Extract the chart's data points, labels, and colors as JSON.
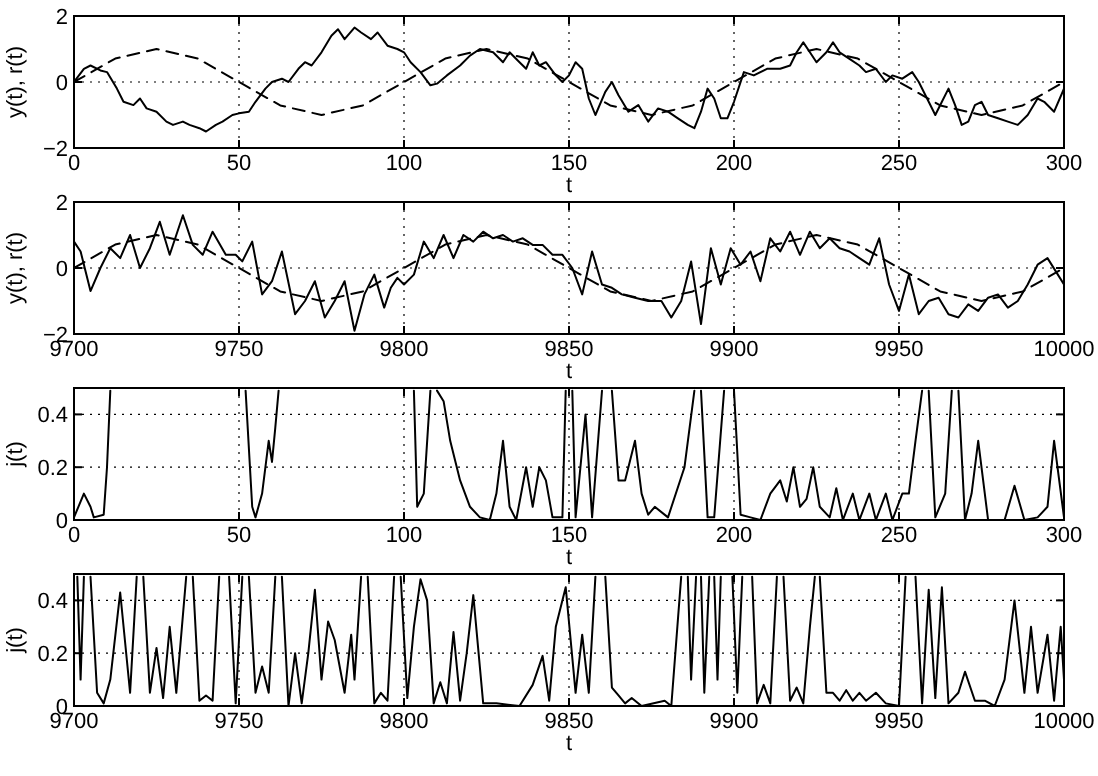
{
  "chart_data": [
    {
      "type": "line",
      "xlabel": "t",
      "ylabel": "y(t), r(t)",
      "xlim": [
        0,
        300
      ],
      "xticks": [
        0,
        50,
        100,
        150,
        200,
        250,
        300
      ],
      "ylim": [
        -2,
        2
      ],
      "yticks": [
        -2,
        0,
        2
      ],
      "grid": true,
      "series": [
        {
          "color": "#000000",
          "line_style": "solid",
          "x": [
            0,
            3,
            5,
            8,
            10,
            13,
            15,
            18,
            20,
            22,
            25,
            28,
            30,
            33,
            35,
            38,
            40,
            43,
            45,
            48,
            50,
            53,
            55,
            58,
            60,
            63,
            65,
            68,
            70,
            72,
            75,
            78,
            80,
            82,
            85,
            87,
            90,
            92,
            95,
            98,
            100,
            102,
            105,
            108,
            110,
            113,
            117,
            120,
            123,
            127,
            130,
            132,
            135,
            137,
            139,
            141,
            143,
            146,
            148,
            150,
            152,
            154,
            156,
            158,
            161,
            163,
            165,
            168,
            171,
            174,
            177,
            180,
            183,
            186,
            188,
            190,
            192,
            194,
            196,
            198,
            200,
            203,
            206,
            210,
            214,
            217,
            219,
            221,
            223,
            225,
            228,
            230,
            232,
            235,
            238,
            240,
            243,
            246,
            248,
            251,
            254,
            256,
            259,
            261,
            263,
            265,
            267,
            269,
            271,
            273,
            275,
            277,
            280,
            283,
            286,
            289,
            292,
            294,
            297,
            300
          ],
          "values": [
            0.0,
            0.4,
            0.5,
            0.35,
            0.3,
            -0.2,
            -0.6,
            -0.7,
            -0.5,
            -0.8,
            -0.9,
            -1.2,
            -1.3,
            -1.2,
            -1.3,
            -1.4,
            -1.5,
            -1.3,
            -1.2,
            -1.0,
            -0.95,
            -0.9,
            -0.6,
            -0.2,
            0.0,
            0.1,
            0.0,
            0.4,
            0.6,
            0.5,
            0.9,
            1.4,
            1.6,
            1.3,
            1.65,
            1.5,
            1.3,
            1.5,
            1.1,
            1.0,
            0.9,
            0.6,
            0.3,
            -0.1,
            -0.05,
            0.2,
            0.5,
            0.8,
            1.0,
            0.9,
            0.6,
            0.9,
            0.6,
            0.4,
            0.9,
            0.5,
            0.6,
            0.2,
            0.0,
            0.2,
            0.6,
            0.4,
            -0.5,
            -1.0,
            -0.3,
            0.0,
            -0.4,
            -0.9,
            -0.7,
            -1.2,
            -0.8,
            -0.9,
            -1.1,
            -1.3,
            -1.4,
            -0.9,
            -0.2,
            -0.5,
            -1.1,
            -1.1,
            -0.6,
            0.3,
            0.2,
            0.4,
            0.4,
            0.5,
            0.9,
            1.2,
            0.9,
            0.6,
            0.9,
            1.2,
            0.9,
            0.7,
            0.5,
            0.3,
            0.4,
            0.0,
            0.2,
            0.1,
            0.3,
            0.0,
            -0.6,
            -1.0,
            -0.6,
            -0.2,
            -0.7,
            -1.3,
            -1.2,
            -0.7,
            -0.6,
            -1.0,
            -1.1,
            -1.2,
            -1.3,
            -1.0,
            -0.5,
            -0.6,
            -0.9,
            -0.2
          ]
        },
        {
          "color": "#000000",
          "line_style": "dashed",
          "x": [
            0,
            12.5,
            25,
            37.5,
            50,
            62.5,
            75,
            87.5,
            100,
            112.5,
            125,
            137.5,
            150,
            162.5,
            175,
            187.5,
            200,
            212.5,
            225,
            237.5,
            250,
            262.5,
            275,
            287.5,
            300
          ],
          "values": [
            0,
            0.71,
            1,
            0.71,
            0,
            -0.71,
            -1,
            -0.71,
            0,
            0.71,
            1,
            0.71,
            0,
            -0.71,
            -1,
            -0.71,
            0,
            0.71,
            1,
            0.71,
            0,
            -0.71,
            -1,
            -0.71,
            0
          ]
        }
      ]
    },
    {
      "type": "line",
      "xlabel": "t",
      "ylabel": "y(t), r(t)",
      "xlim": [
        9700,
        10000
      ],
      "xticks": [
        9700,
        9750,
        9800,
        9850,
        9900,
        9950,
        10000
      ],
      "ylim": [
        -2,
        2
      ],
      "yticks": [
        -2,
        0,
        2
      ],
      "grid": true,
      "series": [
        {
          "color": "#000000",
          "line_style": "solid",
          "x": [
            9700,
            9702,
            9705,
            9708,
            9711,
            9714,
            9717,
            9720,
            9723,
            9726,
            9729,
            9733,
            9736,
            9739,
            9742,
            9746,
            9749,
            9751,
            9754,
            9757,
            9760,
            9763,
            9767,
            9770,
            9773,
            9776,
            9779,
            9782,
            9785,
            9788,
            9791,
            9794,
            9796,
            9798,
            9800,
            9803,
            9806,
            9809,
            9812,
            9815,
            9818,
            9821,
            9824,
            9827,
            9830,
            9833,
            9836,
            9839,
            9842,
            9845,
            9848,
            9851,
            9854,
            9857,
            9860,
            9863,
            9866,
            9870,
            9874,
            9878,
            9881,
            9884,
            9887,
            9890,
            9893,
            9896,
            9899,
            9902,
            9905,
            9908,
            9911,
            9914,
            9917,
            9920,
            9923,
            9926,
            9929,
            9932,
            9935,
            9938,
            9941,
            9944,
            9947,
            9950,
            9953,
            9956,
            9959,
            9962,
            9965,
            9968,
            9971,
            9974,
            9977,
            9980,
            9983,
            9986,
            9989,
            9992,
            9995,
            10000
          ],
          "values": [
            0.8,
            0.5,
            -0.7,
            0.0,
            0.6,
            0.3,
            1.0,
            0.0,
            0.6,
            1.4,
            0.4,
            1.6,
            0.7,
            0.4,
            1.1,
            0.4,
            0.4,
            0.2,
            0.8,
            -0.8,
            -0.4,
            0.5,
            -1.4,
            -1.0,
            -0.4,
            -1.5,
            -1.0,
            -0.4,
            -1.9,
            -0.8,
            -0.2,
            -1.2,
            -0.6,
            -0.3,
            -0.5,
            -0.2,
            0.8,
            0.3,
            1.0,
            0.3,
            1.0,
            0.8,
            1.1,
            0.9,
            1.0,
            0.8,
            0.9,
            0.7,
            0.7,
            0.4,
            0.4,
            0.0,
            -0.8,
            0.5,
            -0.5,
            -0.6,
            -0.8,
            -0.9,
            -1.0,
            -1.0,
            -1.5,
            -1.0,
            0.2,
            -1.7,
            0.6,
            -0.5,
            0.6,
            0.1,
            0.5,
            -0.4,
            0.9,
            0.5,
            1.1,
            0.4,
            1.1,
            0.6,
            0.9,
            0.6,
            0.5,
            0.3,
            0.1,
            0.9,
            -0.5,
            -1.3,
            -0.2,
            -1.4,
            -1.0,
            -0.9,
            -1.4,
            -1.5,
            -1.1,
            -1.3,
            -0.9,
            -0.8,
            -1.2,
            -1.0,
            -0.5,
            0.1,
            0.3,
            -0.5
          ]
        },
        {
          "color": "#000000",
          "line_style": "dashed",
          "x": [
            9700,
            9712.5,
            9725,
            9737.5,
            9750,
            9762.5,
            9775,
            9787.5,
            9800,
            9812.5,
            9825,
            9837.5,
            9850,
            9862.5,
            9875,
            9887.5,
            9900,
            9912.5,
            9925,
            9937.5,
            9950,
            9962.5,
            9975,
            9987.5,
            10000
          ],
          "values": [
            0,
            0.71,
            1,
            0.71,
            0,
            -0.71,
            -1,
            -0.71,
            0,
            0.71,
            1,
            0.71,
            0,
            -0.71,
            -1,
            -0.71,
            0,
            0.71,
            1,
            0.71,
            0,
            -0.71,
            -1,
            -0.71,
            0
          ]
        }
      ]
    },
    {
      "type": "line",
      "xlabel": "t",
      "ylabel": "j(t)",
      "xlim": [
        0,
        300
      ],
      "xticks": [
        0,
        50,
        100,
        150,
        200,
        250,
        300
      ],
      "ylim": [
        0,
        0.5
      ],
      "yticks": [
        0,
        0.2,
        0.4
      ],
      "grid": true,
      "series": [
        {
          "color": "#000000",
          "line_style": "solid",
          "x": [
            0,
            3,
            5,
            6,
            9,
            10,
            11,
            31,
            52,
            54,
            55,
            57,
            59,
            60,
            61,
            62,
            80,
            103,
            104,
            106,
            108,
            109,
            110,
            112,
            114,
            117,
            120,
            123,
            126,
            128,
            130,
            132,
            134,
            137,
            139,
            141,
            143,
            145,
            148,
            149,
            150,
            151,
            152,
            155,
            157,
            160,
            161.5,
            163,
            165,
            167,
            170,
            172,
            174,
            176,
            180,
            185,
            188,
            189,
            190,
            192,
            194,
            197,
            198.5,
            200,
            202,
            205,
            208,
            211,
            214,
            216,
            218,
            220,
            222,
            224,
            226,
            229,
            231,
            233,
            236,
            238,
            241,
            243,
            246,
            248,
            251,
            253,
            255,
            257,
            258,
            259,
            261,
            264,
            266,
            267,
            268,
            270,
            272,
            274,
            277,
            282,
            285,
            288,
            292,
            295,
            297,
            300
          ],
          "values": [
            0.01,
            0.1,
            0.05,
            0.01,
            0.02,
            0.2,
            0.49,
            null,
            0.49,
            0.05,
            0.01,
            0.1,
            0.3,
            0.22,
            0.35,
            0.49,
            null,
            0.49,
            0.05,
            0.1,
            0.49,
            null,
            0.49,
            0.45,
            0.3,
            0.15,
            0.05,
            0.01,
            0.0,
            0.1,
            0.3,
            0.05,
            0.0,
            0.2,
            0.05,
            0.2,
            0.15,
            0.01,
            0.01,
            0.49,
            null,
            0.49,
            0.01,
            0.4,
            0.01,
            0.49,
            null,
            0.49,
            0.15,
            0.15,
            0.3,
            0.1,
            0.02,
            0.05,
            0.01,
            0.2,
            0.49,
            null,
            0.49,
            0.01,
            0.01,
            0.49,
            null,
            0.49,
            0.02,
            0.01,
            0.0,
            0.1,
            0.15,
            0.07,
            0.2,
            0.05,
            0.08,
            0.2,
            0.05,
            0.01,
            0.12,
            0.0,
            0.1,
            0.0,
            0.1,
            0.0,
            0.1,
            0.0,
            0.1,
            0.1,
            0.3,
            0.49,
            null,
            0.49,
            0.01,
            0.1,
            0.49,
            null,
            0.49,
            0.0,
            0.1,
            0.3,
            0.0,
            0.0,
            0.13,
            0.0,
            0.01,
            0.05,
            0.3,
            0.01
          ]
        }
      ]
    },
    {
      "type": "line",
      "xlabel": "t",
      "ylabel": "j(t)",
      "xlim": [
        9700,
        10000
      ],
      "xticks": [
        9700,
        9750,
        9800,
        9850,
        9900,
        9950,
        10000
      ],
      "ylim": [
        0,
        0.5
      ],
      "yticks": [
        0,
        0.2,
        0.4
      ],
      "grid": true,
      "series": [
        {
          "color": "#000000",
          "line_style": "solid",
          "x": [
            9701,
            9702,
            9703,
            9704,
            9705,
            9707,
            9709,
            9711,
            9714,
            9717,
            9719,
            9720,
            9721,
            9723,
            9725,
            9727,
            9729,
            9731,
            9734,
            9735,
            9736,
            9738,
            9740,
            9742,
            9744,
            9745.5,
            9747,
            9749,
            9751,
            9752,
            9753,
            9755,
            9757,
            9759,
            9761,
            9762,
            9763,
            9765,
            9767,
            9769,
            9771,
            9773,
            9775,
            9777,
            9779,
            9782,
            9784,
            9785,
            9787,
            9788,
            9789,
            9791,
            9793,
            9795,
            9797,
            9798,
            9799,
            9801,
            9803,
            9805,
            9807,
            9809,
            9811,
            9813,
            9815,
            9817,
            9819,
            9821,
            9824,
            9828,
            9835,
            9839,
            9842,
            9844,
            9846,
            9849,
            9852,
            9854,
            9856,
            9858,
            9859.5,
            9861,
            9863,
            9865,
            9867,
            9869,
            9872,
            9879,
            9881,
            9884,
            9885,
            9886,
            9887,
            9888.5,
            9889,
            9890,
            9891,
            9892.5,
            9893,
            9894,
            9895,
            9896,
            9898,
            9899.5,
            9901,
            9902.5,
            9904,
            9905.5,
            9907,
            9909,
            9911,
            9913,
            9914,
            9915,
            9917,
            9919,
            9921,
            9923,
            9924.5,
            9925,
            9926,
            9928,
            9930,
            9932,
            9934,
            9936,
            9938,
            9940,
            9943,
            9946,
            9950,
            9952,
            9953.5,
            9955,
            9957,
            9959,
            9961,
            9963,
            9965,
            9968,
            9970,
            9973,
            9976,
            9979,
            9982,
            9985,
            9988,
            9990,
            9992,
            9995,
            9997,
            9999,
            10000
          ],
          "values": [
            0.49,
            0.1,
            0.49,
            null,
            0.49,
            0.05,
            0.01,
            0.1,
            0.43,
            0.05,
            0.49,
            null,
            0.49,
            0.05,
            0.22,
            0.03,
            0.3,
            0.05,
            0.49,
            null,
            0.49,
            0.02,
            0.04,
            0.02,
            0.49,
            null,
            0.49,
            0.01,
            0.49,
            null,
            0.49,
            0.05,
            0.15,
            0.05,
            0.49,
            null,
            0.49,
            0.0,
            0.2,
            0.01,
            0.2,
            0.44,
            0.1,
            0.32,
            0.25,
            0.05,
            0.27,
            0.1,
            0.49,
            null,
            0.49,
            0.01,
            0.05,
            0.02,
            0.49,
            null,
            0.49,
            0.03,
            0.3,
            0.48,
            0.4,
            0.01,
            0.09,
            0.01,
            0.28,
            0.02,
            0.2,
            0.42,
            0.01,
            0.01,
            0.0,
            0.08,
            0.19,
            0.02,
            0.3,
            0.45,
            0.05,
            0.27,
            0.05,
            0.49,
            null,
            0.49,
            0.07,
            0.04,
            0.01,
            0.03,
            0.0,
            0.02,
            0.0,
            0.49,
            null,
            0.49,
            0.1,
            0.49,
            null,
            0.49,
            0.05,
            0.49,
            null,
            0.49,
            0.1,
            0.49,
            null,
            0.49,
            0.05,
            0.49,
            null,
            0.49,
            0.01,
            0.08,
            0.01,
            0.49,
            null,
            0.49,
            0.02,
            0.07,
            0.01,
            0.3,
            0.49,
            null,
            0.49,
            0.05,
            0.05,
            0.02,
            0.06,
            0.02,
            0.05,
            0.02,
            0.05,
            0.01,
            0.0,
            0.49,
            null,
            0.49,
            0.01,
            0.44,
            0.03,
            0.45,
            0.01,
            0.05,
            0.13,
            0.02,
            0.02,
            0.0,
            0.1,
            0.4,
            0.05,
            0.3,
            0.05,
            0.27,
            0.02,
            0.3,
            0.1
          ]
        }
      ]
    }
  ]
}
